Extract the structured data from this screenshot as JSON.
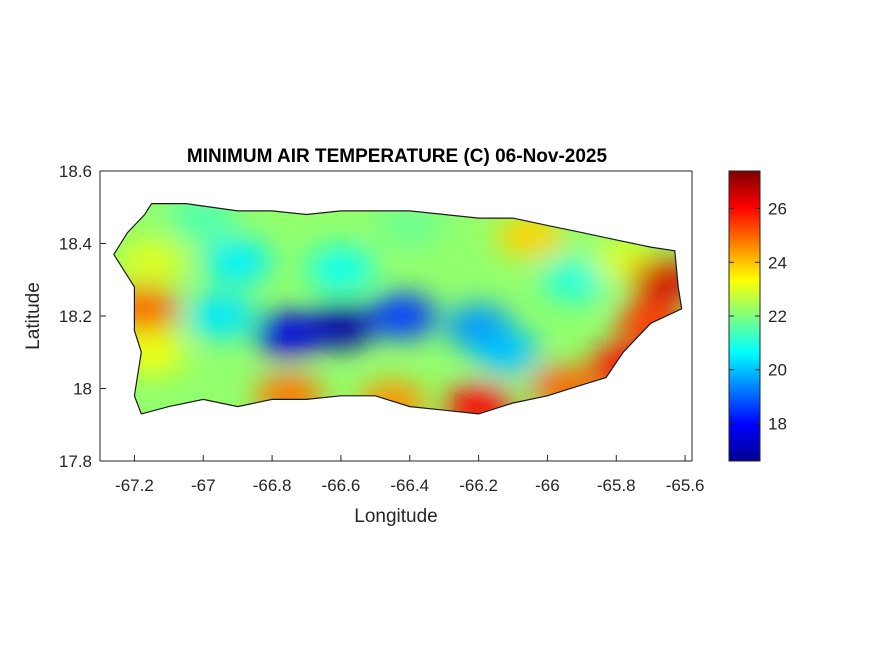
{
  "chart_data": {
    "type": "heatmap",
    "title": "MINIMUM AIR TEMPERATURE (C) 06-Nov-2025",
    "xlabel": "Longitude",
    "ylabel": "Latitude",
    "xlim": [
      -67.3,
      -65.58
    ],
    "ylim": [
      17.8,
      18.6
    ],
    "x_ticks": [
      -67.2,
      -67,
      -66.8,
      -66.6,
      -66.4,
      -66.2,
      -66,
      -65.8,
      -65.6
    ],
    "x_tick_labels": [
      "-67.2",
      "-67",
      "-66.8",
      "-66.6",
      "-66.4",
      "-66.2",
      "-66",
      "-65.8",
      "-65.6"
    ],
    "y_ticks": [
      17.8,
      18,
      18.2,
      18.4,
      18.6
    ],
    "y_tick_labels": [
      "17.8",
      "18",
      "18.2",
      "18.4",
      "18.6"
    ],
    "colorbar": {
      "colormap": "jet",
      "min": 16.6,
      "max": 27.4,
      "ticks": [
        18,
        20,
        22,
        24,
        26
      ],
      "tick_labels": [
        "18",
        "20",
        "22",
        "24",
        "26"
      ]
    },
    "grid": false,
    "outline_lonlat": [
      [
        -67.26,
        18.37
      ],
      [
        -67.22,
        18.43
      ],
      [
        -67.17,
        18.48
      ],
      [
        -67.15,
        18.51
      ],
      [
        -67.05,
        18.51
      ],
      [
        -66.9,
        18.49
      ],
      [
        -66.8,
        18.49
      ],
      [
        -66.7,
        18.48
      ],
      [
        -66.6,
        18.49
      ],
      [
        -66.5,
        18.49
      ],
      [
        -66.4,
        18.49
      ],
      [
        -66.3,
        18.48
      ],
      [
        -66.2,
        18.47
      ],
      [
        -66.1,
        18.47
      ],
      [
        -66.0,
        18.45
      ],
      [
        -65.9,
        18.43
      ],
      [
        -65.8,
        18.41
      ],
      [
        -65.7,
        18.39
      ],
      [
        -65.63,
        18.38
      ],
      [
        -65.62,
        18.28
      ],
      [
        -65.61,
        18.22
      ],
      [
        -65.7,
        18.18
      ],
      [
        -65.78,
        18.1
      ],
      [
        -65.83,
        18.03
      ],
      [
        -65.9,
        18.01
      ],
      [
        -66.0,
        17.98
      ],
      [
        -66.1,
        17.96
      ],
      [
        -66.2,
        17.93
      ],
      [
        -66.3,
        17.94
      ],
      [
        -66.4,
        17.95
      ],
      [
        -66.5,
        17.98
      ],
      [
        -66.6,
        17.98
      ],
      [
        -66.7,
        17.97
      ],
      [
        -66.8,
        17.97
      ],
      [
        -66.9,
        17.95
      ],
      [
        -67.0,
        17.97
      ],
      [
        -67.1,
        17.95
      ],
      [
        -67.18,
        17.93
      ],
      [
        -67.2,
        17.98
      ],
      [
        -67.18,
        18.1
      ],
      [
        -67.2,
        18.16
      ],
      [
        -67.2,
        18.28
      ],
      [
        -67.26,
        18.37
      ]
    ],
    "temperature_features": [
      {
        "lon": -66.6,
        "lat": 18.17,
        "value": 17.0
      },
      {
        "lon": -66.75,
        "lat": 18.15,
        "value": 17.6
      },
      {
        "lon": -66.42,
        "lat": 18.2,
        "value": 18.5
      },
      {
        "lon": -66.2,
        "lat": 18.17,
        "value": 19.5
      },
      {
        "lon": -66.12,
        "lat": 18.1,
        "value": 20.0
      },
      {
        "lon": -66.9,
        "lat": 18.35,
        "value": 20.5
      },
      {
        "lon": -66.95,
        "lat": 18.2,
        "value": 20.4
      },
      {
        "lon": -66.6,
        "lat": 18.33,
        "value": 20.8
      },
      {
        "lon": -65.92,
        "lat": 18.3,
        "value": 21.0
      },
      {
        "lon": -65.77,
        "lat": 18.35,
        "value": 23.0
      },
      {
        "lon": -65.66,
        "lat": 18.3,
        "value": 26.5
      },
      {
        "lon": -65.7,
        "lat": 18.18,
        "value": 25.5
      },
      {
        "lon": -65.78,
        "lat": 18.06,
        "value": 26.0
      },
      {
        "lon": -65.95,
        "lat": 18.0,
        "value": 25.0
      },
      {
        "lon": -66.2,
        "lat": 17.95,
        "value": 26.0
      },
      {
        "lon": -66.45,
        "lat": 17.96,
        "value": 24.5
      },
      {
        "lon": -66.75,
        "lat": 17.98,
        "value": 24.8
      },
      {
        "lon": -67.15,
        "lat": 18.1,
        "value": 23.2
      },
      {
        "lon": -67.17,
        "lat": 18.22,
        "value": 25.0
      },
      {
        "lon": -67.15,
        "lat": 18.35,
        "value": 23.0
      },
      {
        "lon": -67.0,
        "lat": 18.47,
        "value": 21.5
      },
      {
        "lon": -66.4,
        "lat": 18.45,
        "value": 21.8
      },
      {
        "lon": -66.05,
        "lat": 18.42,
        "value": 23.8
      }
    ],
    "background_value": 22.2
  }
}
